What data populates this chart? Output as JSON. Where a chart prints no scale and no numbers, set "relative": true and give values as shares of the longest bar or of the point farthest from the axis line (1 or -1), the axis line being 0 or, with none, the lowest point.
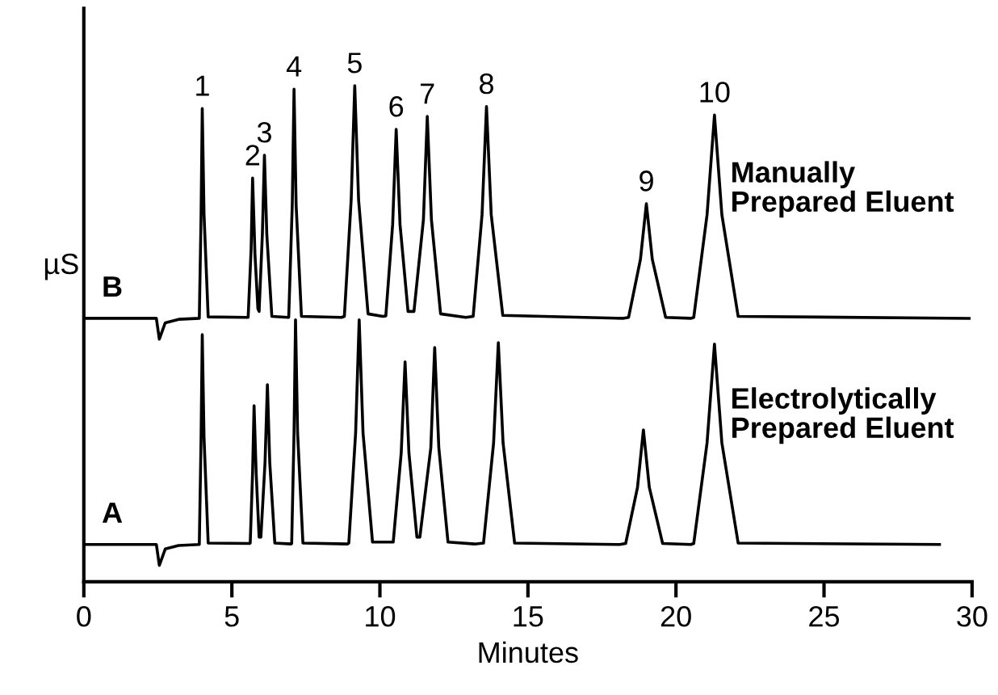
{
  "chart_data": {
    "type": "line",
    "relative": true,
    "xlabel": "Minutes",
    "ylabel": "µS",
    "xlim": [
      0,
      30
    ],
    "xticks": [
      0,
      5,
      10,
      15,
      20,
      25,
      30
    ],
    "grid": false,
    "legend": false,
    "marker": "none",
    "line_style": "solid",
    "series": [
      {
        "name": "B",
        "color": "#000000",
        "x": [
          0,
          2.45,
          2.55,
          2.75,
          3.2,
          3.9,
          3.96,
          4.0,
          4.06,
          4.2,
          5.5,
          5.55,
          5.65,
          5.7,
          5.78,
          5.88,
          5.92,
          6.03,
          6.1,
          6.18,
          6.35,
          6.9,
          6.92,
          7.04,
          7.1,
          7.17,
          7.35,
          8.7,
          8.8,
          9.03,
          9.15,
          9.28,
          9.6,
          10.1,
          10.2,
          10.43,
          10.55,
          10.68,
          10.95,
          11.15,
          11.47,
          11.6,
          11.74,
          12.05,
          12.9,
          13.15,
          13.45,
          13.6,
          13.76,
          14.15,
          18.2,
          18.4,
          18.8,
          19.0,
          19.2,
          19.65,
          20.5,
          20.6,
          21.05,
          21.3,
          21.55,
          22.1,
          29.9
        ],
        "values": [
          0.531,
          0.531,
          0.489,
          0.522,
          0.529,
          0.531,
          0.74,
          0.954,
          0.74,
          0.534,
          0.533,
          0.533,
          0.67,
          0.814,
          0.66,
          0.55,
          0.545,
          0.7,
          0.86,
          0.7,
          0.535,
          0.533,
          0.533,
          0.76,
          0.993,
          0.76,
          0.535,
          0.533,
          0.535,
          0.77,
          1.0,
          0.77,
          0.54,
          0.535,
          0.536,
          0.72,
          0.912,
          0.72,
          0.545,
          0.545,
          0.73,
          0.938,
          0.73,
          0.54,
          0.533,
          0.535,
          0.74,
          0.958,
          0.74,
          0.537,
          0.531,
          0.533,
          0.65,
          0.762,
          0.65,
          0.533,
          0.531,
          0.533,
          0.74,
          0.941,
          0.74,
          0.535,
          0.531
        ]
      },
      {
        "name": "A",
        "color": "#000000",
        "x": [
          0,
          2.45,
          2.55,
          2.75,
          3.2,
          3.9,
          3.96,
          4.0,
          4.06,
          4.2,
          5.6,
          5.62,
          5.7,
          5.75,
          5.82,
          5.92,
          5.98,
          6.12,
          6.2,
          6.28,
          6.45,
          7.0,
          7.02,
          7.1,
          7.15,
          7.22,
          7.4,
          8.9,
          8.95,
          9.18,
          9.3,
          9.43,
          9.75,
          10.45,
          10.72,
          10.85,
          10.98,
          11.25,
          11.35,
          11.72,
          11.85,
          11.99,
          12.3,
          13.2,
          13.5,
          13.84,
          14.0,
          14.16,
          14.55,
          18.1,
          18.3,
          18.7,
          18.9,
          19.1,
          19.55,
          20.5,
          20.6,
          21.05,
          21.3,
          21.55,
          22.1,
          28.9
        ],
        "values": [
          0.075,
          0.075,
          0.033,
          0.066,
          0.073,
          0.075,
          0.29,
          0.498,
          0.29,
          0.078,
          0.077,
          0.078,
          0.22,
          0.355,
          0.22,
          0.09,
          0.09,
          0.24,
          0.397,
          0.24,
          0.078,
          0.076,
          0.077,
          0.3,
          0.528,
          0.3,
          0.078,
          0.076,
          0.078,
          0.3,
          0.528,
          0.3,
          0.08,
          0.08,
          0.26,
          0.443,
          0.26,
          0.09,
          0.09,
          0.27,
          0.472,
          0.27,
          0.08,
          0.076,
          0.078,
          0.28,
          0.482,
          0.28,
          0.078,
          0.075,
          0.077,
          0.19,
          0.306,
          0.19,
          0.077,
          0.075,
          0.077,
          0.28,
          0.479,
          0.28,
          0.078,
          0.075
        ]
      }
    ],
    "annotations": [
      {
        "text": "1",
        "x": 4.0,
        "y": 0.954
      },
      {
        "text": "2",
        "x": 5.7,
        "y": 0.814
      },
      {
        "text": "3",
        "x": 6.1,
        "y": 0.86
      },
      {
        "text": "4",
        "x": 7.1,
        "y": 0.993
      },
      {
        "text": "5",
        "x": 9.15,
        "y": 1.0
      },
      {
        "text": "6",
        "x": 10.55,
        "y": 0.912
      },
      {
        "text": "7",
        "x": 11.6,
        "y": 0.938
      },
      {
        "text": "8",
        "x": 13.6,
        "y": 0.958
      },
      {
        "text": "9",
        "x": 19.0,
        "y": 0.762
      },
      {
        "text": "10",
        "x": 21.3,
        "y": 0.941
      },
      "Manually\nPrepared Eluent",
      "Electrolytically\nPrepared Eluent"
    ]
  }
}
